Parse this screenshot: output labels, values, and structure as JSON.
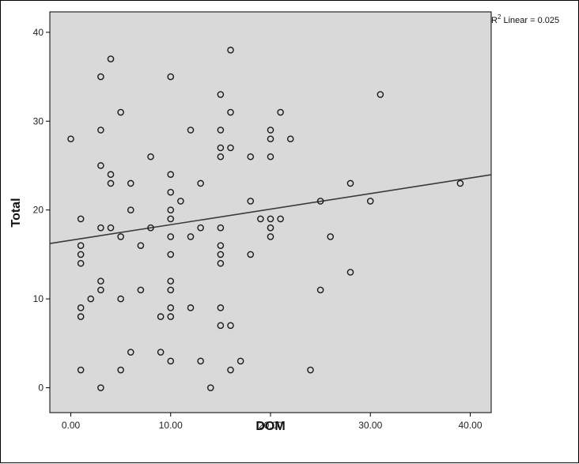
{
  "chart_data": {
    "type": "scatter",
    "xlabel": "DOM",
    "ylabel": "Total",
    "xlim": [
      -2.1,
      42.1
    ],
    "ylim": [
      -2.8,
      42.3
    ],
    "x_ticks": [
      0,
      10,
      20,
      30,
      40
    ],
    "x_tick_labels": [
      "0.00",
      "10.00",
      "20.00",
      "30.00",
      "40.00"
    ],
    "y_ticks": [
      0,
      10,
      20,
      30,
      40
    ],
    "y_tick_labels": [
      "0",
      "10",
      "20",
      "30",
      "40"
    ],
    "grid": false,
    "plot_background": "#d9d9d9",
    "marker_style": "open-circle",
    "marker_color": "#1a1a1a",
    "fit_line_color": "#3a3a3a",
    "r2_prefix": "R",
    "r2_suffix": " Linear = 0.025",
    "fit_line": {
      "type": "linear",
      "intercept": 16.6,
      "slope": 0.175
    },
    "points": [
      {
        "x": 0,
        "y": 28
      },
      {
        "x": 1,
        "y": 19
      },
      {
        "x": 1,
        "y": 16
      },
      {
        "x": 1,
        "y": 15
      },
      {
        "x": 1,
        "y": 14
      },
      {
        "x": 1,
        "y": 9
      },
      {
        "x": 1,
        "y": 8
      },
      {
        "x": 1,
        "y": 2
      },
      {
        "x": 2,
        "y": 10
      },
      {
        "x": 3,
        "y": 35
      },
      {
        "x": 3,
        "y": 29
      },
      {
        "x": 3,
        "y": 25
      },
      {
        "x": 3,
        "y": 18
      },
      {
        "x": 3,
        "y": 12
      },
      {
        "x": 3,
        "y": 11
      },
      {
        "x": 3,
        "y": 0
      },
      {
        "x": 4,
        "y": 37
      },
      {
        "x": 4,
        "y": 24
      },
      {
        "x": 4,
        "y": 23
      },
      {
        "x": 4,
        "y": 18
      },
      {
        "x": 5,
        "y": 31
      },
      {
        "x": 5,
        "y": 17
      },
      {
        "x": 5,
        "y": 10
      },
      {
        "x": 5,
        "y": 2
      },
      {
        "x": 6,
        "y": 23
      },
      {
        "x": 6,
        "y": 20
      },
      {
        "x": 6,
        "y": 4
      },
      {
        "x": 7,
        "y": 16
      },
      {
        "x": 7,
        "y": 11
      },
      {
        "x": 8,
        "y": 26
      },
      {
        "x": 8,
        "y": 18
      },
      {
        "x": 9,
        "y": 8
      },
      {
        "x": 9,
        "y": 4
      },
      {
        "x": 10,
        "y": 35
      },
      {
        "x": 10,
        "y": 24
      },
      {
        "x": 10,
        "y": 22
      },
      {
        "x": 10,
        "y": 20
      },
      {
        "x": 10,
        "y": 19
      },
      {
        "x": 10,
        "y": 17
      },
      {
        "x": 10,
        "y": 15
      },
      {
        "x": 10,
        "y": 12
      },
      {
        "x": 10,
        "y": 11
      },
      {
        "x": 10,
        "y": 9
      },
      {
        "x": 10,
        "y": 8
      },
      {
        "x": 10,
        "y": 3
      },
      {
        "x": 11,
        "y": 21
      },
      {
        "x": 12,
        "y": 29
      },
      {
        "x": 12,
        "y": 17
      },
      {
        "x": 12,
        "y": 9
      },
      {
        "x": 13,
        "y": 23
      },
      {
        "x": 13,
        "y": 18
      },
      {
        "x": 13,
        "y": 3
      },
      {
        "x": 14,
        "y": 0
      },
      {
        "x": 15,
        "y": 33
      },
      {
        "x": 15,
        "y": 29
      },
      {
        "x": 15,
        "y": 27
      },
      {
        "x": 15,
        "y": 26
      },
      {
        "x": 15,
        "y": 18
      },
      {
        "x": 15,
        "y": 16
      },
      {
        "x": 15,
        "y": 15
      },
      {
        "x": 15,
        "y": 14
      },
      {
        "x": 15,
        "y": 9
      },
      {
        "x": 15,
        "y": 7
      },
      {
        "x": 16,
        "y": 38
      },
      {
        "x": 16,
        "y": 31
      },
      {
        "x": 16,
        "y": 27
      },
      {
        "x": 16,
        "y": 7
      },
      {
        "x": 16,
        "y": 2
      },
      {
        "x": 17,
        "y": 3
      },
      {
        "x": 18,
        "y": 26
      },
      {
        "x": 18,
        "y": 21
      },
      {
        "x": 18,
        "y": 15
      },
      {
        "x": 19,
        "y": 19
      },
      {
        "x": 20,
        "y": 29
      },
      {
        "x": 20,
        "y": 28
      },
      {
        "x": 20,
        "y": 26
      },
      {
        "x": 20,
        "y": 19
      },
      {
        "x": 20,
        "y": 18
      },
      {
        "x": 20,
        "y": 17
      },
      {
        "x": 21,
        "y": 31
      },
      {
        "x": 21,
        "y": 19
      },
      {
        "x": 22,
        "y": 28
      },
      {
        "x": 24,
        "y": 2
      },
      {
        "x": 25,
        "y": 21
      },
      {
        "x": 25,
        "y": 11
      },
      {
        "x": 26,
        "y": 17
      },
      {
        "x": 28,
        "y": 23
      },
      {
        "x": 28,
        "y": 13
      },
      {
        "x": 30,
        "y": 21
      },
      {
        "x": 31,
        "y": 33
      },
      {
        "x": 39,
        "y": 23
      }
    ]
  }
}
